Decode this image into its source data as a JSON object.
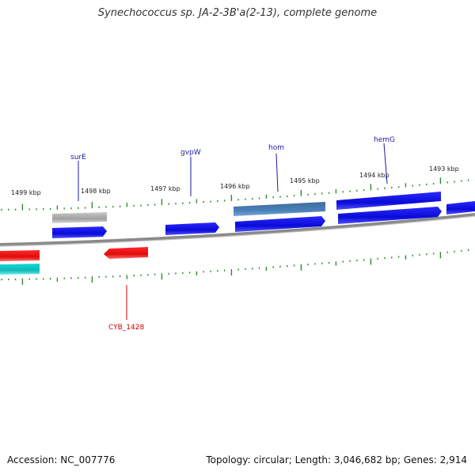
{
  "title": "Synechococcus sp. JA-2-3B'a(2-13), complete genome",
  "footer": {
    "accession": "Accession: NC_007776",
    "summary": "Topology: circular; Length: 3,046,682 bp; Genes: 2,914"
  },
  "colors": {
    "backbone": "#8a8a8a",
    "tick": "#2e8b2e",
    "label_top": "#1a1aa6",
    "label_bottom": "#cc0000",
    "gene_forward": "#1010e0",
    "gene_reverse": "#ee1111",
    "gene_pseudo": "#aaaaaa",
    "gene_steel": "#4a7aab",
    "gene_cyan": "#1ec8c8"
  },
  "scale": {
    "unit": "kbp",
    "labels": [
      "1499 kbp",
      "1498 kbp",
      "1497 kbp",
      "1496 kbp",
      "1495 kbp",
      "1494 kbp",
      "1493 kbp"
    ]
  },
  "genes": [
    {
      "name": "surE",
      "strand": "top",
      "type": "pseudo"
    },
    {
      "name": "gvpW",
      "strand": "top",
      "type": "forward"
    },
    {
      "name": "hom",
      "strand": "top",
      "type": "steel"
    },
    {
      "name": "hemG",
      "strand": "top",
      "type": "forward"
    },
    {
      "name": "CYB_1428",
      "strand": "bottom",
      "type": "reverse"
    }
  ]
}
